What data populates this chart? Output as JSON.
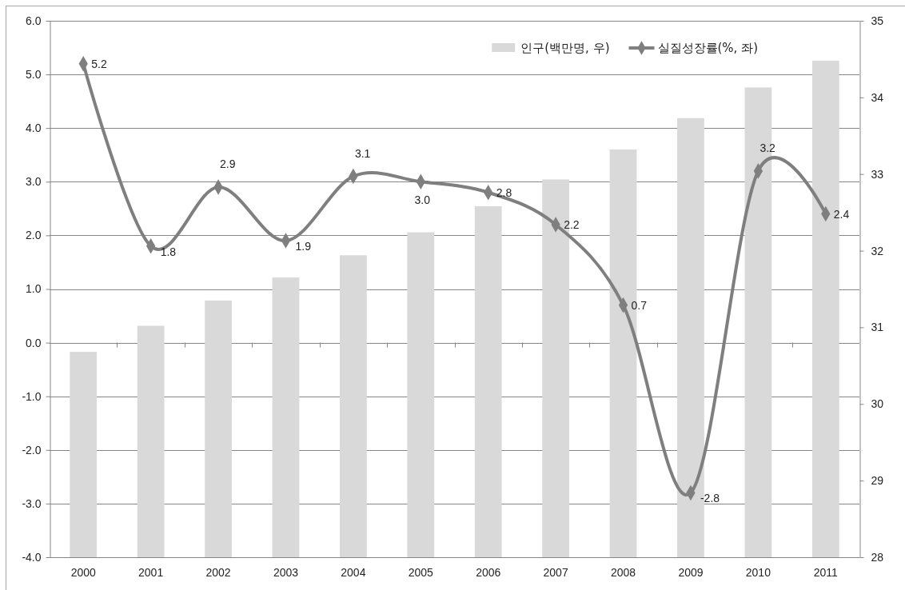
{
  "chart_data": {
    "type": "bar",
    "categories": [
      "2000",
      "2001",
      "2002",
      "2003",
      "2004",
      "2005",
      "2006",
      "2007",
      "2008",
      "2009",
      "2010",
      "2011"
    ],
    "series": [
      {
        "name": "인구(백만명, 우)",
        "axis": "y2",
        "color": "#d9d9d9",
        "values": [
          30.68,
          31.02,
          31.35,
          31.65,
          31.94,
          32.24,
          32.58,
          32.93,
          33.32,
          33.73,
          34.13,
          34.48
        ]
      },
      {
        "name": "실질성장률(%, 좌)",
        "type": "line",
        "color": "#7f7f7f",
        "values": [
          5.2,
          1.8,
          2.9,
          1.9,
          3.1,
          3.0,
          2.8,
          2.2,
          0.7,
          -2.8,
          3.2,
          2.4
        ],
        "value_labels": [
          "5.2",
          "1.8",
          "2.9",
          "1.9",
          "3.1",
          "3.0",
          "2.8",
          "2.2",
          "0.7",
          "-2.8",
          "3.2",
          "2.4"
        ]
      }
    ],
    "ylim": [
      -4,
      6
    ],
    "yticks": [
      {
        "value": -4,
        "label": "-4.0"
      },
      {
        "value": -3,
        "label": "-3.0"
      },
      {
        "value": -2,
        "label": "-2.0"
      },
      {
        "value": -1,
        "label": "-1.0"
      },
      {
        "value": 0,
        "label": "0.0"
      },
      {
        "value": 1,
        "label": "1.0"
      },
      {
        "value": 2,
        "label": "2.0"
      },
      {
        "value": 3,
        "label": "3.0"
      },
      {
        "value": 4,
        "label": "4.0"
      },
      {
        "value": 5,
        "label": "5.0"
      },
      {
        "value": 6,
        "label": "6.0"
      }
    ],
    "y2lim": [
      28,
      35
    ],
    "y2ticks": [
      28,
      29,
      30,
      31,
      32,
      33,
      34,
      35
    ],
    "grid": "y",
    "legend": "top right",
    "marker": "diamond"
  }
}
